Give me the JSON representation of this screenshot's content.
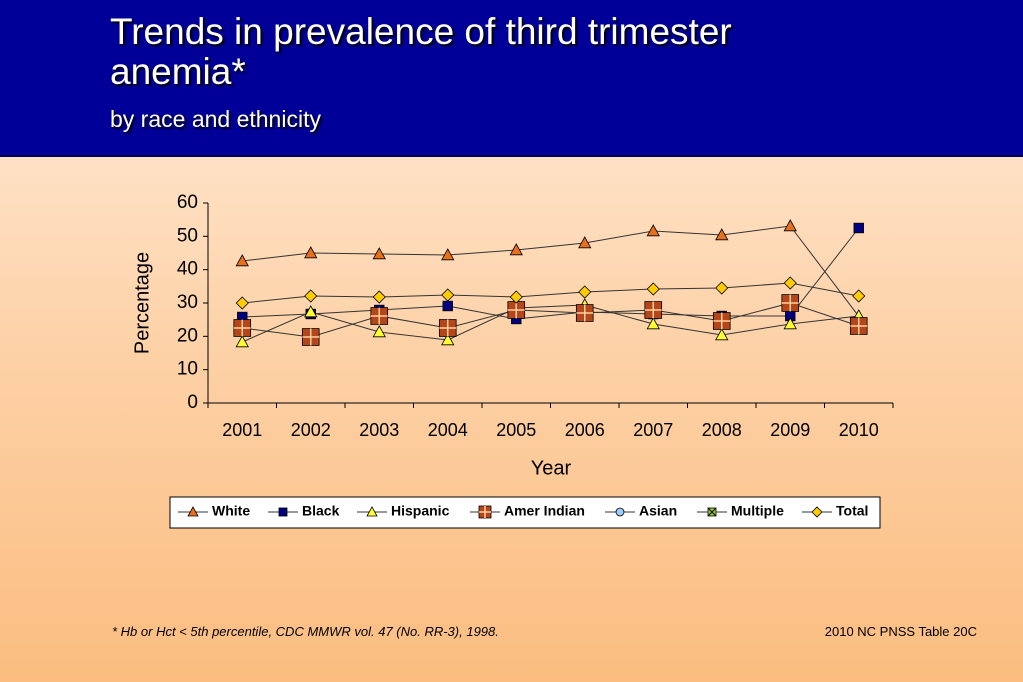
{
  "chart_data": {
    "type": "line",
    "title": "Trends in prevalence of third trimester anemia*",
    "subtitle": "by race and ethnicity",
    "x_label": "Year",
    "y_label": "Percentage",
    "footnote": "*  Hb or Hct < 5th percentile, CDC MMWR vol. 47 (No. RR-3), 1998.",
    "source": "2010 NC PNSS Table 20C",
    "categories": [
      "2001",
      "2002",
      "2003",
      "2004",
      "2005",
      "2006",
      "2007",
      "2008",
      "2009",
      "2010"
    ],
    "ylim": [
      0,
      60
    ],
    "yticks": [
      0,
      10,
      20,
      30,
      40,
      50,
      60
    ],
    "line_color": "#333333",
    "legend": "bottom",
    "series": [
      {
        "name": "White",
        "color": "#e8701a",
        "marker": "triangle",
        "values": [
          42.6,
          45,
          44.7,
          44.4,
          45.9,
          48,
          51.6,
          50.4,
          53.1,
          26
        ]
      },
      {
        "name": "Black",
        "color": "#000080",
        "marker": "square",
        "values": [
          25.8,
          26.7,
          27.9,
          29.1,
          25.2,
          27.3,
          26.7,
          26.1,
          26.1,
          52.5
        ]
      },
      {
        "name": "Hispanic",
        "color": "#ffff33",
        "marker": "triangle",
        "values": [
          18.3,
          27.3,
          21.3,
          18.9,
          28.5,
          29.4,
          23.7,
          20.4,
          23.7,
          26.1
        ]
      },
      {
        "name": "Amer Indian",
        "color": "#b5461a",
        "marker": "plus-square",
        "values": [
          22.5,
          19.8,
          26.1,
          22.5,
          27.9,
          27,
          27.9,
          24.6,
          30,
          23.1
        ]
      },
      {
        "name": "Asian",
        "color": "#99ccff",
        "marker": "circle",
        "values": [
          null,
          null,
          null,
          null,
          null,
          null,
          null,
          null,
          null,
          null
        ]
      },
      {
        "name": "Multiple",
        "color": "#99cc33",
        "marker": "x-square",
        "values": [
          null,
          null,
          null,
          null,
          null,
          null,
          null,
          null,
          null,
          null
        ]
      },
      {
        "name": "Total",
        "color": "#ffcc00",
        "marker": "diamond",
        "values": [
          30,
          32.1,
          31.8,
          32.4,
          31.8,
          33.3,
          34.2,
          34.5,
          36,
          32.1
        ]
      }
    ]
  }
}
